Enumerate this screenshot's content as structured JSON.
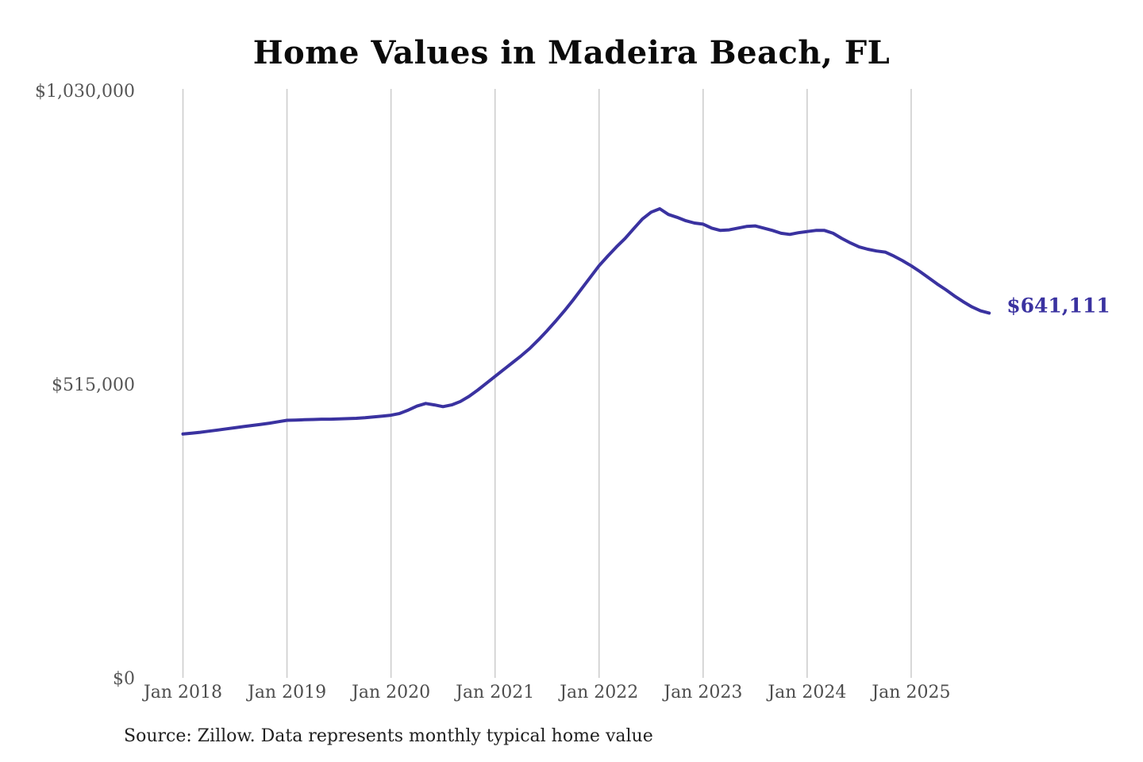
{
  "page": {
    "background": "#ffffff"
  },
  "chart_data": {
    "type": "line",
    "title": "Home Values in Madeira Beach, FL",
    "source_note": "Source: Zillow. Data represents monthly typical home value",
    "series_name": "Monthly typical home value",
    "end_label": "$641,111",
    "end_value": 641111,
    "line_color": "#3a32a0",
    "gridline_color": "#cbcbcb",
    "legend": "none",
    "grid": "vertical-only",
    "ylim": [
      0,
      1030000
    ],
    "y_max": 1030000,
    "y_ticks": [
      {
        "label": "$0",
        "value": 0
      },
      {
        "label": "$515,000",
        "value": 515000
      },
      {
        "label": "$1,030,000",
        "value": 1030000
      }
    ],
    "x_ticks": [
      "Jan 2018",
      "Jan 2019",
      "Jan 2020",
      "Jan 2021",
      "Jan 2022",
      "Jan 2023",
      "Jan 2024",
      "Jan 2025"
    ],
    "x": [
      "2018-01",
      "2018-02",
      "2018-03",
      "2018-04",
      "2018-05",
      "2018-06",
      "2018-07",
      "2018-08",
      "2018-09",
      "2018-10",
      "2018-11",
      "2018-12",
      "2019-01",
      "2019-02",
      "2019-03",
      "2019-04",
      "2019-05",
      "2019-06",
      "2019-07",
      "2019-08",
      "2019-09",
      "2019-10",
      "2019-11",
      "2019-12",
      "2020-01",
      "2020-02",
      "2020-03",
      "2020-04",
      "2020-05",
      "2020-06",
      "2020-07",
      "2020-08",
      "2020-09",
      "2020-10",
      "2020-11",
      "2020-12",
      "2021-01",
      "2021-02",
      "2021-03",
      "2021-04",
      "2021-05",
      "2021-06",
      "2021-07",
      "2021-08",
      "2021-09",
      "2021-10",
      "2021-11",
      "2021-12",
      "2022-01",
      "2022-02",
      "2022-03",
      "2022-04",
      "2022-05",
      "2022-06",
      "2022-07",
      "2022-08",
      "2022-09",
      "2022-10",
      "2022-11",
      "2022-12",
      "2023-01",
      "2023-02",
      "2023-03",
      "2023-04",
      "2023-05",
      "2023-06",
      "2023-07",
      "2023-08",
      "2023-09",
      "2023-10",
      "2023-11",
      "2023-12",
      "2024-01",
      "2024-02",
      "2024-03",
      "2024-04",
      "2024-05",
      "2024-06",
      "2024-07",
      "2024-08",
      "2024-09",
      "2024-10",
      "2024-11",
      "2024-12",
      "2025-01",
      "2025-02",
      "2025-03",
      "2025-04",
      "2025-05",
      "2025-06",
      "2025-07",
      "2025-08",
      "2025-09",
      "2025-10"
    ],
    "values": [
      429000,
      430500,
      432000,
      434000,
      436000,
      438000,
      440000,
      442000,
      444000,
      446000,
      448000,
      450500,
      453000,
      453500,
      454000,
      454500,
      455000,
      455000,
      455500,
      456000,
      456500,
      457500,
      459000,
      460500,
      462000,
      465000,
      471000,
      478000,
      482500,
      480000,
      477000,
      480000,
      486000,
      495000,
      506000,
      518000,
      530000,
      542000,
      554000,
      566000,
      579000,
      594000,
      610000,
      627000,
      645000,
      664000,
      684000,
      704000,
      724000,
      741000,
      757000,
      772000,
      789000,
      806000,
      818000,
      824000,
      814000,
      809000,
      803000,
      799000,
      797000,
      790000,
      786000,
      787000,
      790000,
      793000,
      794000,
      790000,
      786000,
      781000,
      779000,
      782000,
      784000,
      786000,
      786000,
      781000,
      772000,
      764000,
      757000,
      753000,
      750000,
      748000,
      741000,
      733000,
      724000,
      714000,
      703000,
      692000,
      682000,
      671000,
      661000,
      652000,
      645000,
      641111
    ]
  }
}
